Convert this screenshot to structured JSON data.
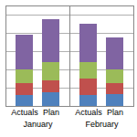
{
  "chart_data": {
    "type": "bar",
    "stacked": true,
    "grid": true,
    "tick_labels": "x",
    "categories": [
      "Actuals",
      "Plan",
      "Actuals",
      "Plan"
    ],
    "groups": [
      "January",
      "January",
      "February",
      "February"
    ],
    "ylim": [
      0,
      110
    ],
    "yticks": [
      0,
      20,
      40,
      60,
      80,
      100
    ],
    "series": [
      {
        "color": "#4F81BD",
        "values": [
          12,
          15,
          12,
          13
        ]
      },
      {
        "color": "#C0504D",
        "values": [
          13,
          13,
          18,
          12
        ]
      },
      {
        "color": "#9BBB59",
        "values": [
          15,
          20,
          18,
          15
        ]
      },
      {
        "color": "#8064A2",
        "values": [
          38,
          47,
          42,
          35
        ]
      }
    ]
  }
}
